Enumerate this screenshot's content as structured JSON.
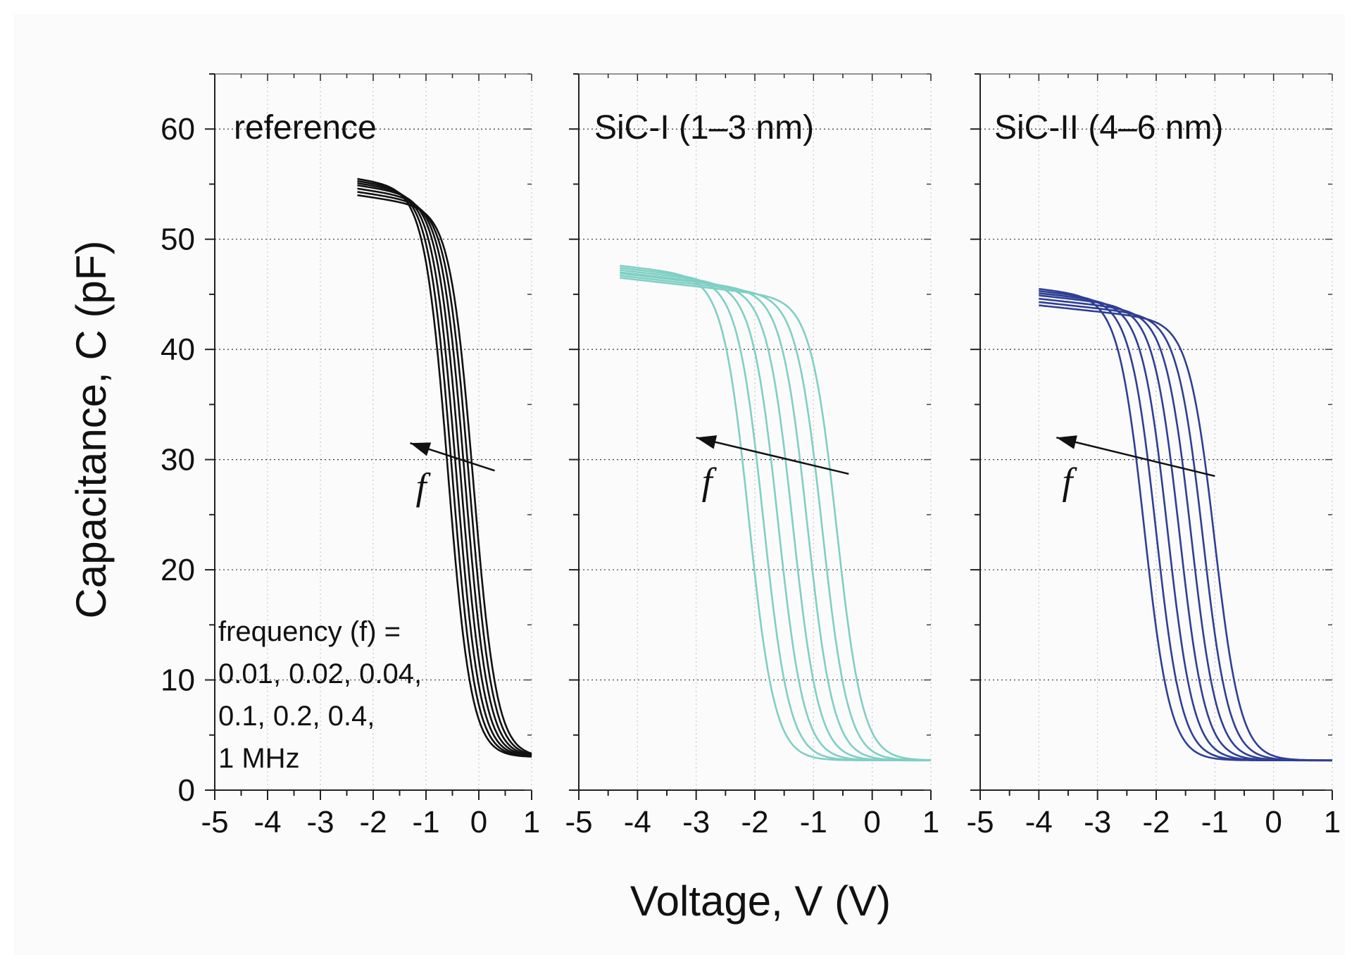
{
  "chart_data": {
    "type": "line",
    "xlabel": "Voltage, V (V)",
    "ylabel": "Capacitance, C (pF)",
    "xlim": [
      -5,
      1
    ],
    "ylim": [
      0,
      65
    ],
    "x_ticks": [
      "-5",
      "-4",
      "-3",
      "-2",
      "-1",
      "0",
      "1"
    ],
    "y_ticks": [
      "0",
      "10",
      "20",
      "30",
      "40",
      "50",
      "60"
    ],
    "grid": true,
    "frequency_note": [
      "frequency (f) =",
      "0.01, 0.02, 0.04,",
      "0.1, 0.2, 0.4,",
      "1 MHz"
    ],
    "frequency_symbol": "f",
    "frequencies_MHz": [
      0.01,
      0.02,
      0.04,
      0.1,
      0.2,
      0.4,
      1
    ],
    "panels": [
      {
        "title": "reference",
        "color": "#111111",
        "v_start": -2.3,
        "c_min": 3,
        "series": [
          {
            "name": "0.01 MHz",
            "v_mid": -0.1,
            "c_max": 54.0
          },
          {
            "name": "0.02 MHz",
            "v_mid": -0.18,
            "c_max": 54.3
          },
          {
            "name": "0.04 MHz",
            "v_mid": -0.26,
            "c_max": 54.6
          },
          {
            "name": "0.1 MHz",
            "v_mid": -0.34,
            "c_max": 54.9
          },
          {
            "name": "0.2 MHz",
            "v_mid": -0.42,
            "c_max": 55.1
          },
          {
            "name": "0.4 MHz",
            "v_mid": -0.5,
            "c_max": 55.3
          },
          {
            "name": "1 MHz",
            "v_mid": -0.58,
            "c_max": 55.5
          }
        ]
      },
      {
        "title": "SiC-I (1–3 nm)",
        "color": "#7fcfc4",
        "v_start": -4.3,
        "c_min": 2.7,
        "series": [
          {
            "name": "0.01 MHz",
            "v_mid": -0.6,
            "c_max": 46.5
          },
          {
            "name": "0.02 MHz",
            "v_mid": -0.85,
            "c_max": 46.7
          },
          {
            "name": "0.04 MHz",
            "v_mid": -1.1,
            "c_max": 46.9
          },
          {
            "name": "0.1 MHz",
            "v_mid": -1.35,
            "c_max": 47.0
          },
          {
            "name": "0.2 MHz",
            "v_mid": -1.6,
            "c_max": 47.2
          },
          {
            "name": "0.4 MHz",
            "v_mid": -1.85,
            "c_max": 47.4
          },
          {
            "name": "1 MHz",
            "v_mid": -2.1,
            "c_max": 47.6
          }
        ]
      },
      {
        "title": "SiC-II (4–6 nm)",
        "color": "#2e3f94",
        "v_start": -4.0,
        "c_min": 2.7,
        "series": [
          {
            "name": "0.01 MHz",
            "v_mid": -1.0,
            "c_max": 44.0
          },
          {
            "name": "0.02 MHz",
            "v_mid": -1.2,
            "c_max": 44.3
          },
          {
            "name": "0.04 MHz",
            "v_mid": -1.4,
            "c_max": 44.6
          },
          {
            "name": "0.1 MHz",
            "v_mid": -1.6,
            "c_max": 44.9
          },
          {
            "name": "0.2 MHz",
            "v_mid": -1.8,
            "c_max": 45.1
          },
          {
            "name": "0.4 MHz",
            "v_mid": -2.0,
            "c_max": 45.3
          },
          {
            "name": "1 MHz",
            "v_mid": -2.2,
            "c_max": 45.5
          }
        ]
      }
    ],
    "arrows": [
      {
        "panel": 0,
        "from": [
          0.3,
          29.0
        ],
        "to": [
          -1.3,
          31.5
        ]
      },
      {
        "panel": 1,
        "from": [
          -0.4,
          28.7
        ],
        "to": [
          -3.0,
          32.0
        ]
      },
      {
        "panel": 2,
        "from": [
          -1.0,
          28.5
        ],
        "to": [
          -3.7,
          32.0
        ]
      }
    ]
  }
}
